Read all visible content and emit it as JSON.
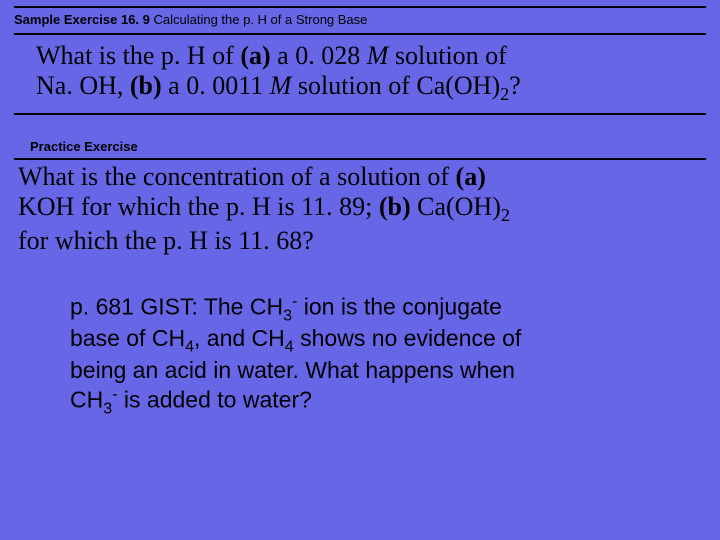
{
  "colors": {
    "background": "#6666e6",
    "text": "#000000",
    "rule": "#000000"
  },
  "sample": {
    "title_bold": "Sample Exercise 16. 9",
    "title_rest": " Calculating the p. H of a Strong Base",
    "line1_a": "What is the p. H of ",
    "line1_b": "(a)",
    "line1_c": " a 0. 028 ",
    "line1_d": "M",
    "line1_e": " solution of",
    "line2_a": "Na. OH, ",
    "line2_b": "(b)",
    "line2_c": " a 0. 0011 ",
    "line2_d": "M",
    "line2_e": " solution of Ca(OH)",
    "line2_sub": "2",
    "line2_f": "?"
  },
  "practice": {
    "title": "Practice Exercise",
    "line1_a": "What is the concentration of a solution of ",
    "line1_b": "(a)",
    "line2_a": "KOH for which the p. H is 11. 89; ",
    "line2_b": "(b)",
    "line2_c": " Ca(OH)",
    "line2_sub": "2",
    "line3_a": "for which the p. H is 11. 68?"
  },
  "gist": {
    "l1_a": "p. 681 GIST: The CH",
    "l1_sub": "3",
    "l1_sup": "-",
    "l1_b": " ion is the conjugate",
    "l2_a": "base of CH",
    "l2_sub1": "4",
    "l2_b": ", and CH",
    "l2_sub2": "4",
    "l2_c": " shows no evidence of",
    "l3_a": "being an acid in water.  What happens when",
    "l4_a": "CH",
    "l4_sub": "3",
    "l4_sup": "-",
    "l4_b": " is added to water?"
  }
}
